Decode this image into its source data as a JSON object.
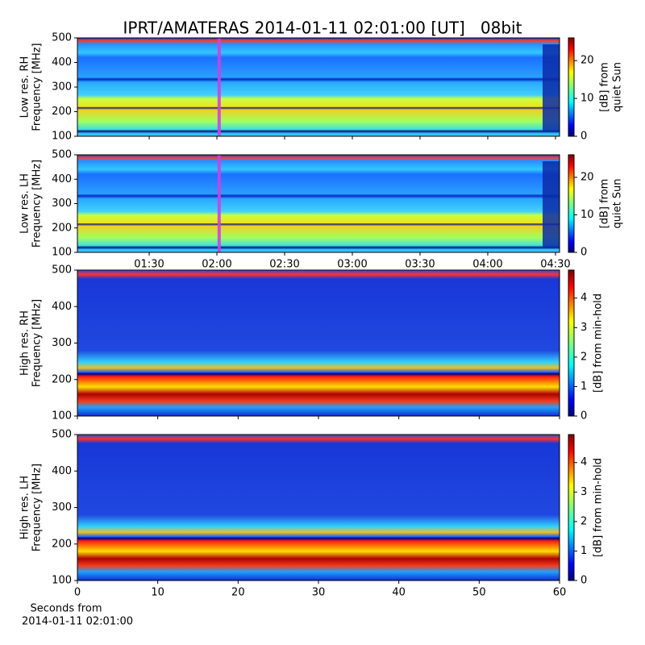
{
  "chart_data": [
    {
      "type": "heatmap",
      "title": "IPRT/AMATERAS 2014-01-11 02:01:00 [UT]   08bit",
      "ylabel": [
        "Low res. RH",
        "Frequency [MHz]"
      ],
      "ylim": [
        100,
        500
      ],
      "yticks": [
        100,
        200,
        300,
        400,
        500
      ],
      "xlim": [
        0.97,
        4.53
      ],
      "highlight_x": 2.0167,
      "colorbar_label": [
        "[dB] from",
        "quiet Sun"
      ],
      "clim": [
        0,
        26
      ],
      "cticks": [
        0,
        10,
        20
      ]
    },
    {
      "type": "heatmap",
      "ylabel": [
        "Low res. LH",
        "Frequency [MHz]"
      ],
      "ylim": [
        100,
        500
      ],
      "yticks": [
        100,
        200,
        300,
        400,
        500
      ],
      "xlim": [
        0.97,
        4.53
      ],
      "highlight_x": 2.0167,
      "xticks": [
        {
          "value": 1.5,
          "label": "01:30"
        },
        {
          "value": 2.0,
          "label": "02:00"
        },
        {
          "value": 2.5,
          "label": "02:30"
        },
        {
          "value": 3.0,
          "label": "03:00"
        },
        {
          "value": 3.5,
          "label": "03:30"
        },
        {
          "value": 4.0,
          "label": "04:00"
        },
        {
          "value": 4.5,
          "label": "04:30"
        }
      ],
      "colorbar_label": [
        "[dB] from",
        "quiet Sun"
      ],
      "clim": [
        0,
        26
      ],
      "cticks": [
        0,
        10,
        20
      ]
    },
    {
      "type": "heatmap",
      "ylabel": [
        "High res. RH",
        "Frequency [MHz]"
      ],
      "ylim": [
        100,
        500
      ],
      "yticks": [
        100,
        200,
        300,
        400,
        500
      ],
      "xlim": [
        0,
        60
      ],
      "colorbar_label": [
        "[dB] from min-hold"
      ],
      "clim": [
        0,
        4.95
      ],
      "cticks": [
        0,
        1,
        2,
        3,
        4
      ]
    },
    {
      "type": "heatmap",
      "ylabel": [
        "High res. LH",
        "Frequency [MHz]"
      ],
      "ylim": [
        100,
        500
      ],
      "yticks": [
        100,
        200,
        300,
        400,
        500
      ],
      "xlim": [
        0,
        60
      ],
      "xticks": [
        0,
        10,
        20,
        30,
        40,
        50,
        60
      ],
      "xlabel": [
        "Seconds from",
        "2014-01-11 02:01:00"
      ],
      "colorbar_label": [
        "[dB] from min-hold"
      ],
      "clim": [
        0,
        4.95
      ],
      "cticks": [
        0,
        1,
        2,
        3,
        4
      ]
    }
  ]
}
